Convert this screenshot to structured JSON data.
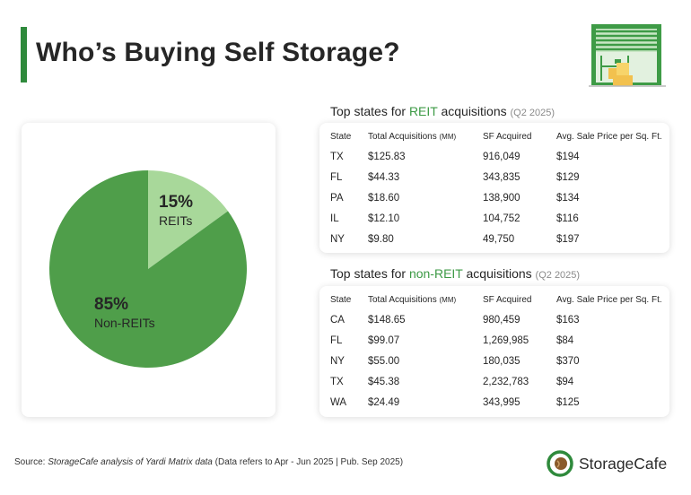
{
  "title": "Who’s Buying Self Storage?",
  "colors": {
    "accent": "#2f8a3c",
    "reit": "#a8d89a",
    "non_reit": "#4f9e4a",
    "highlight": "#3c9a45"
  },
  "chart_data": {
    "type": "pie",
    "slices": [
      {
        "label": "REITs",
        "value": 15,
        "value_label": "15%",
        "color": "#a8d89a"
      },
      {
        "label": "Non-REITs",
        "value": 85,
        "value_label": "85%",
        "color": "#4f9e4a"
      }
    ]
  },
  "reit_table": {
    "heading_prefix": "Top states for ",
    "heading_highlight": "REIT",
    "heading_suffix": " acquisitions ",
    "period": "(Q2 2025)",
    "columns": {
      "state": "State",
      "total": "Total Acquisitions",
      "total_unit": "(MM)",
      "sf": "SF Acquired",
      "price": "Avg. Sale Price per Sq. Ft."
    },
    "rows": [
      [
        "TX",
        "$125.83",
        "916,049",
        "$194"
      ],
      [
        "FL",
        "$44.33",
        "343,835",
        "$129"
      ],
      [
        "PA",
        "$18.60",
        "138,900",
        "$134"
      ],
      [
        "IL",
        "$12.10",
        "104,752",
        "$116"
      ],
      [
        "NY",
        "$9.80",
        "49,750",
        "$197"
      ]
    ]
  },
  "non_reit_table": {
    "heading_prefix": "Top states for ",
    "heading_highlight": "non-REIT",
    "heading_suffix": " acquisitions ",
    "period": "(Q2 2025)",
    "columns": {
      "state": "State",
      "total": "Total Acquisitions",
      "total_unit": "(MM)",
      "sf": "SF Acquired",
      "price": "Avg. Sale Price per Sq. Ft."
    },
    "rows": [
      [
        "CA",
        "$148.65",
        "980,459",
        "$163"
      ],
      [
        "FL",
        "$99.07",
        "1,269,985",
        "$84"
      ],
      [
        "NY",
        "$55.00",
        "180,035",
        "$370"
      ],
      [
        "TX",
        "$45.38",
        "2,232,783",
        "$94"
      ],
      [
        "WA",
        "$24.49",
        "343,995",
        "$125"
      ]
    ]
  },
  "source": {
    "prefix": "Source: ",
    "text": "StorageCafe analysis of Yardi Matrix data",
    "suffix": " (Data refers to Apr - Jun 2025 | Pub. Sep 2025)"
  },
  "logo": {
    "text": "StorageCafe",
    "icon": "storagecafe-logo-icon"
  },
  "illustration": {
    "icon": "storage-unit-illustration-icon"
  }
}
